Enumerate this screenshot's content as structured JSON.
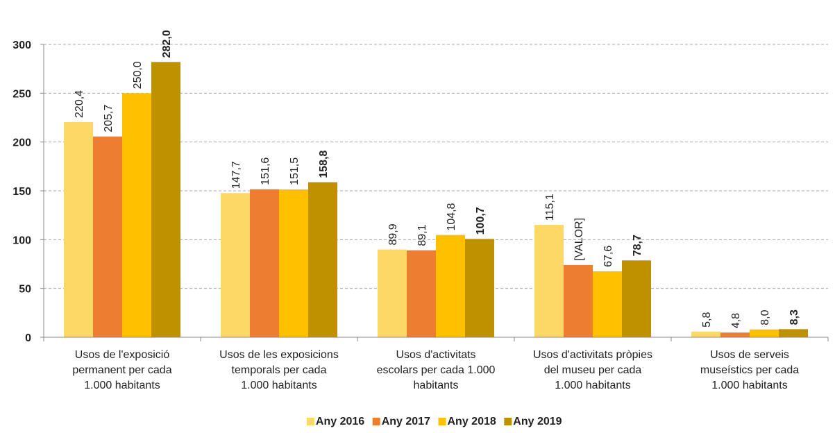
{
  "chart_data": {
    "type": "bar",
    "categories": [
      [
        "Usos de l'exposició",
        "permanent per cada",
        "1.000 habitants"
      ],
      [
        "Usos de les exposicions",
        "temporals per cada",
        "1.000 habitants"
      ],
      [
        "Usos d'activitats",
        "escolars per cada 1.000",
        "habitants"
      ],
      [
        "Usos d'activitats pròpies",
        "del museu per cada",
        "1.000 habitants"
      ],
      [
        "Usos de serveis",
        "museístics per cada",
        "1.000 habitants"
      ]
    ],
    "series": [
      {
        "name": "Any 2016",
        "color": "#fdd866",
        "values": [
          220.4,
          147.7,
          89.9,
          115.1,
          5.8
        ],
        "value_labels": [
          "220,4",
          "147,7",
          "89,9",
          "115,1",
          "5,8"
        ]
      },
      {
        "name": "Any 2017",
        "color": "#ed7d31",
        "values": [
          205.7,
          151.6,
          89.1,
          74,
          4.8
        ],
        "value_labels": [
          "205,7",
          "151,6",
          "89,1",
          "[VALOR]",
          "4,8"
        ]
      },
      {
        "name": "Any 2018",
        "color": "#ffc000",
        "values": [
          250.0,
          151.5,
          104.8,
          67.6,
          8.0
        ],
        "value_labels": [
          "250,0",
          "151,5",
          "104,8",
          "67,6",
          "8,0"
        ]
      },
      {
        "name": "Any 2019",
        "color": "#bf9000",
        "values": [
          282.0,
          158.8,
          100.7,
          78.7,
          8.3
        ],
        "value_labels": [
          "282,0",
          "158,8",
          "100,7",
          "78,7",
          "8,3"
        ],
        "label_bold": true
      }
    ],
    "ylim": [
      0,
      300
    ],
    "yticks": [
      0,
      50,
      100,
      150,
      200,
      250,
      300
    ],
    "grid": true,
    "legend": "bottom"
  }
}
